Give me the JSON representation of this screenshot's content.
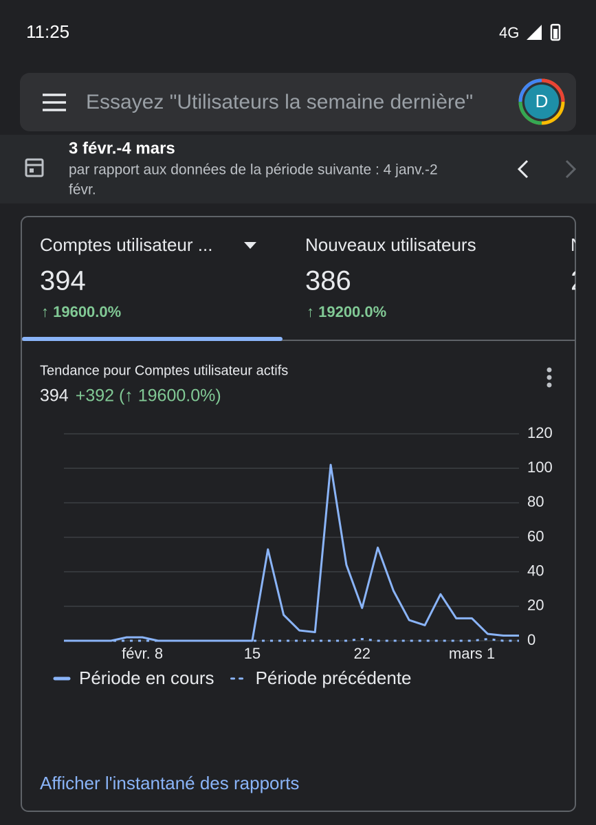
{
  "status_bar": {
    "time": "11:25",
    "network": "4G"
  },
  "search": {
    "placeholder": "Essayez \"Utilisateurs la semaine dernière\"",
    "avatar": "D"
  },
  "date_range": {
    "current": "3 févr.-4 mars",
    "comparison_line1": "par rapport aux données de la période suivante : 4 janv.-2",
    "comparison_line2": "févr."
  },
  "tabs": [
    {
      "label": "Comptes utilisateur ...",
      "value": "394",
      "change": "↑ 19600.0%"
    },
    {
      "label": "Nouveaux utilisateurs",
      "value": "386",
      "change": "↑ 19200.0%"
    },
    {
      "label": "N",
      "value": "2"
    }
  ],
  "chart_data": {
    "type": "line",
    "title": "Tendance pour Comptes utilisateur actifs",
    "summary_value": "394",
    "summary_change": "+392 (↑ 19600.0%)",
    "categories": [
      null,
      null,
      null,
      null,
      null,
      "févr. 8",
      null,
      null,
      null,
      null,
      null,
      null,
      "15",
      null,
      null,
      null,
      null,
      null,
      null,
      "22",
      null,
      null,
      null,
      null,
      null,
      null,
      "mars 1",
      null,
      null,
      null
    ],
    "series": [
      {
        "name": "Période en cours",
        "color": "#8ab4f8",
        "dashed": false,
        "values": [
          0,
          0,
          0,
          0,
          2,
          2,
          0,
          0,
          0,
          0,
          0,
          0,
          0,
          53,
          15,
          6,
          5,
          102,
          44,
          19,
          54,
          29,
          12,
          9,
          27,
          13,
          13,
          4,
          3,
          3
        ]
      },
      {
        "name": "Période précédente",
        "color": "#8ab4f8",
        "dashed": true,
        "values": [
          0,
          0,
          0,
          0,
          0,
          0,
          0,
          0,
          0,
          0,
          0,
          0,
          0,
          0,
          0,
          0,
          0,
          0,
          0,
          1,
          0,
          0,
          0,
          0,
          0,
          0,
          0,
          1,
          0,
          0
        ]
      }
    ],
    "ylim": [
      0,
      120
    ],
    "yticks": [
      0,
      20,
      40,
      60,
      80,
      100,
      120
    ],
    "grid": true,
    "y_axis_side": "right"
  },
  "link": "Afficher l'instantané des rapports"
}
